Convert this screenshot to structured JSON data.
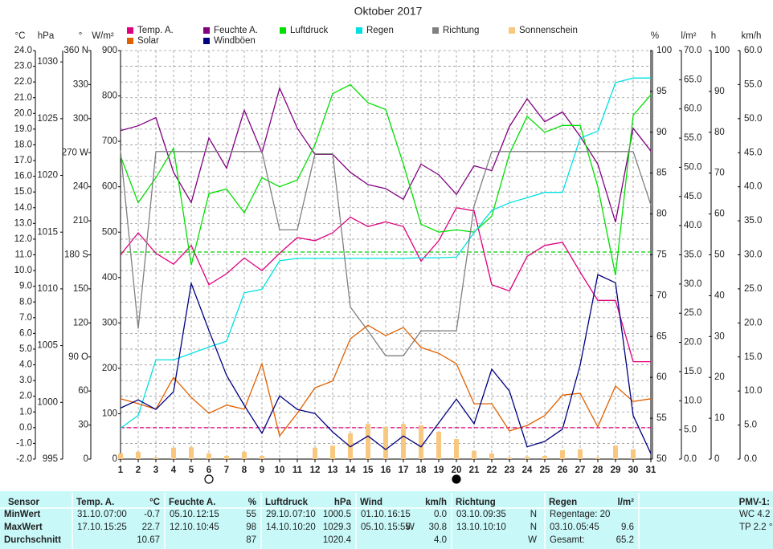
{
  "chart_data": {
    "type": "line",
    "title": "Oktober 2017",
    "x": [
      1,
      2,
      3,
      4,
      5,
      6,
      7,
      8,
      9,
      10,
      11,
      12,
      13,
      14,
      15,
      16,
      17,
      18,
      19,
      20,
      21,
      22,
      23,
      24,
      25,
      26,
      27,
      28,
      29,
      30,
      31
    ],
    "xlim": [
      1,
      31
    ],
    "grid": true,
    "axes": {
      "temp": {
        "label": "°C",
        "color": "#e0007f",
        "ylim": [
          -2,
          24
        ],
        "yticks": [
          {
            "value": -2,
            "label": "-2.0"
          },
          {
            "value": -1,
            "label": "-1.0"
          },
          {
            "value": 0,
            "label": "0.0"
          },
          {
            "value": 1,
            "label": "1.0"
          },
          {
            "value": 2,
            "label": "2.0"
          },
          {
            "value": 3,
            "label": "3.0"
          },
          {
            "value": 4,
            "label": "4.0"
          },
          {
            "value": 5,
            "label": "5.0"
          },
          {
            "value": 6,
            "label": "6.0"
          },
          {
            "value": 7,
            "label": "7.0"
          },
          {
            "value": 8,
            "label": "8.0"
          },
          {
            "value": 9,
            "label": "9.0"
          },
          {
            "value": 10,
            "label": "10.0"
          },
          {
            "value": 11,
            "label": "11.0"
          },
          {
            "value": 12,
            "label": "12.0"
          },
          {
            "value": 13,
            "label": "13.0"
          },
          {
            "value": 14,
            "label": "14.0"
          },
          {
            "value": 15,
            "label": "15.0"
          },
          {
            "value": 16,
            "label": "16.0"
          },
          {
            "value": 17,
            "label": "17.0"
          },
          {
            "value": 18,
            "label": "18.0"
          },
          {
            "value": 19,
            "label": "19.0"
          },
          {
            "value": 20,
            "label": "20.0"
          },
          {
            "value": 21,
            "label": "21.0"
          },
          {
            "value": 22,
            "label": "22.0"
          },
          {
            "value": 23,
            "label": "23.0"
          },
          {
            "value": 24,
            "label": "24.0"
          }
        ]
      },
      "hpa": {
        "label": "hPa",
        "color": "#00c000",
        "ylim": [
          995,
          1031
        ],
        "yticks": [
          995,
          1000,
          1005,
          1010,
          1015,
          1020,
          1025,
          1030
        ]
      },
      "dir": {
        "label": "°",
        "color": "#707070",
        "ylim": [
          0,
          360
        ],
        "yticks": [
          0,
          30,
          60,
          {
            "value": 90,
            "label": "90 O"
          },
          120,
          150,
          {
            "value": 180,
            "label": "180 S"
          },
          210,
          240,
          {
            "value": 270,
            "label": "270 W"
          },
          300,
          330,
          {
            "value": 360,
            "label": "360 N"
          }
        ]
      },
      "solar": {
        "label": "W/m²",
        "color": "#e06000",
        "ylim": [
          0,
          900
        ],
        "yticks": [
          0,
          100,
          200,
          300,
          400,
          500,
          600,
          700,
          800,
          900
        ]
      },
      "hum": {
        "label": "%",
        "color": "#800080",
        "ylim": [
          50,
          100
        ],
        "yticks": [
          50,
          55,
          60,
          65,
          70,
          75,
          80,
          85,
          90,
          95,
          100
        ]
      },
      "rain": {
        "label": "l/m²",
        "color": "#00d0d0",
        "ylim": [
          0,
          70
        ],
        "yticks": [
          {
            "value": 0,
            "label": "0.0"
          },
          {
            "value": 5,
            "label": "5.0"
          },
          {
            "value": 10,
            "label": "10.0"
          },
          {
            "value": 15,
            "label": "15.0"
          },
          {
            "value": 20,
            "label": "20.0"
          },
          {
            "value": 25,
            "label": "25.0"
          },
          {
            "value": 30,
            "label": "30.0"
          },
          {
            "value": 35,
            "label": "35.0"
          },
          {
            "value": 40,
            "label": "40.0"
          },
          {
            "value": 45,
            "label": "45.0"
          },
          {
            "value": 50,
            "label": "50.0"
          },
          {
            "value": 55,
            "label": "55.0"
          },
          {
            "value": 60,
            "label": "60.0"
          },
          {
            "value": 65,
            "label": "65.0"
          },
          {
            "value": 70,
            "label": "70.0"
          }
        ]
      },
      "sun": {
        "label": "h",
        "color": "#f0c080",
        "ylim": [
          0,
          100
        ],
        "yticks": [
          0,
          10,
          20,
          30,
          40,
          50,
          60,
          70,
          80,
          90,
          100
        ]
      },
      "wind": {
        "label": "km/h",
        "color": "#000080",
        "ylim": [
          0,
          60
        ],
        "yticks": [
          {
            "value": 0,
            "label": "0.0"
          },
          {
            "value": 5,
            "label": "5.0"
          },
          {
            "value": 10,
            "label": "10.0"
          },
          {
            "value": 15,
            "label": "15.0"
          },
          {
            "value": 20,
            "label": "20.0"
          },
          {
            "value": 25,
            "label": "25.0"
          },
          {
            "value": 30,
            "label": "30.0"
          },
          {
            "value": 35,
            "label": "35.0"
          },
          {
            "value": 40,
            "label": "40.0"
          },
          {
            "value": 45,
            "label": "45.0"
          },
          {
            "value": 50,
            "label": "50.0"
          },
          {
            "value": 55,
            "label": "55.0"
          },
          {
            "value": 60,
            "label": "60.0"
          }
        ]
      }
    },
    "series": [
      {
        "name": "Temp. A.",
        "color": "#e0007f",
        "axis": "temp",
        "values": [
          11.0,
          12.4,
          11.1,
          10.4,
          11.6,
          9.1,
          9.8,
          10.8,
          10.0,
          11.1,
          12.1,
          11.9,
          12.4,
          13.4,
          12.8,
          13.1,
          12.8,
          10.6,
          11.9,
          14.0,
          13.8,
          9.1,
          8.7,
          10.9,
          11.6,
          11.8,
          9.9,
          8.1,
          8.1,
          4.2,
          4.2
        ]
      },
      {
        "name": "Feuchte A.",
        "color": "#800080",
        "axis": "hum",
        "values": [
          90.2,
          90.8,
          91.8,
          85.1,
          81.4,
          89.3,
          85.6,
          92.7,
          87.5,
          95.4,
          90.5,
          87.3,
          87.3,
          85.1,
          83.6,
          83.1,
          81.8,
          86.1,
          84.8,
          82.4,
          85.9,
          85.3,
          90.7,
          94.1,
          91.3,
          92.5,
          89.5,
          86.1,
          79.0,
          90.5,
          87.7
        ]
      },
      {
        "name": "Luftdruck",
        "color": "#00e000",
        "axis": "hpa",
        "values": [
          1021.7,
          1017.6,
          1019.8,
          1022.4,
          1012.1,
          1018.4,
          1018.8,
          1016.7,
          1019.8,
          1019.0,
          1019.6,
          1022.7,
          1027.2,
          1028.0,
          1026.4,
          1025.8,
          1021.0,
          1015.7,
          1015.0,
          1015.2,
          1015.0,
          1016.4,
          1021.9,
          1025.2,
          1023.8,
          1024.4,
          1024.4,
          1019.0,
          1011.2,
          1025.3,
          1027.1
        ]
      },
      {
        "name": "Regen",
        "color": "#00e0e0",
        "axis": "rain",
        "values": [
          5.3,
          7.5,
          17.0,
          17.0,
          18.1,
          19.2,
          20.2,
          28.5,
          29.1,
          34.0,
          34.4,
          34.4,
          34.4,
          34.4,
          34.4,
          34.4,
          34.4,
          34.5,
          34.5,
          34.6,
          38.8,
          42.6,
          43.9,
          44.8,
          45.7,
          45.7,
          55.0,
          56.2,
          64.5,
          65.3,
          65.3
        ]
      },
      {
        "name": "Richtung",
        "color": "#808080",
        "axis": "dir",
        "values": [
          272,
          115,
          271,
          271,
          271,
          271,
          271,
          271,
          271,
          202,
          202,
          269,
          269,
          134,
          113,
          91,
          91,
          113,
          113,
          113,
          223,
          271,
          271,
          271,
          271,
          271,
          271,
          271,
          271,
          271,
          224
        ]
      },
      {
        "name": "Sonnenschein",
        "color": "#f8c880",
        "axis": "sun",
        "kind": "bar",
        "values": [
          1.4,
          1.8,
          0.4,
          2.8,
          2.9,
          1.4,
          0.8,
          1.8,
          0.8,
          0,
          0,
          2.8,
          3.3,
          6.3,
          8.6,
          7.9,
          8.6,
          8.3,
          6.7,
          4.9,
          2.0,
          1.4,
          0.4,
          0.6,
          0.8,
          2.2,
          2.4,
          0.4,
          3.3,
          2.4,
          0
        ]
      },
      {
        "name": "Solar",
        "color": "#e06000",
        "axis": "solar",
        "values": [
          133,
          122,
          110,
          180,
          136,
          101,
          119,
          110,
          210,
          51,
          101,
          157,
          172,
          265,
          295,
          272,
          290,
          246,
          233,
          210,
          122,
          122,
          62,
          74,
          96,
          141,
          145,
          71,
          161,
          127,
          133
        ]
      },
      {
        "name": "Windböen",
        "color": "#000080",
        "axis": "wind",
        "values": [
          7.5,
          8.7,
          7.3,
          9.9,
          25.8,
          18.9,
          12.3,
          7.9,
          3.8,
          9.3,
          7.3,
          6.7,
          4.0,
          1.8,
          3.4,
          1.4,
          3.4,
          1.8,
          5.3,
          8.8,
          5.2,
          13.2,
          10.0,
          1.8,
          2.6,
          4.4,
          13.8,
          27.1,
          25.9,
          6.4,
          0.8
        ]
      }
    ],
    "reference_lines": [
      {
        "axis": "hpa",
        "value": 1013.25,
        "color": "#00d000"
      },
      {
        "axis": "temp",
        "value": 0,
        "color": "#e0007f"
      }
    ]
  },
  "table": {
    "header": [
      {
        "name": "Sensor"
      },
      {
        "name": "Temp. A.",
        "unit": "°C"
      },
      {
        "name": "Feuchte A.",
        "unit": "%"
      },
      {
        "name": "Luftdruck",
        "unit": "hPa"
      },
      {
        "name": "Wind",
        "unit": "km/h"
      },
      {
        "name": "Richtung"
      },
      {
        "name": "Regen",
        "unit": "l/m²"
      },
      {
        "name": "PMV-1:"
      }
    ],
    "rows": [
      {
        "label": "MinWert",
        "cells": [
          {
            "date": "31.10.",
            "time": "07:00",
            "value": "-0.7"
          },
          {
            "date": "05.10.",
            "time": "12:15",
            "value": "55"
          },
          {
            "date": "29.10.",
            "time": "07:10",
            "value": "1000.5"
          },
          {
            "date": "01.10.",
            "time": "16:15",
            "value": "0.0"
          },
          {
            "date": "03.10.",
            "time": "09:35",
            "dir": "N"
          },
          {
            "text": "Regentage: 20"
          },
          {
            "text": "WC 4.2 °"
          }
        ]
      },
      {
        "label": "MaxWert",
        "cells": [
          {
            "date": "17.10.",
            "time": "15:25",
            "value": "22.7"
          },
          {
            "date": "12.10.",
            "time": "10:45",
            "value": "98"
          },
          {
            "date": "14.10.",
            "time": "10:20",
            "value": "1029.3"
          },
          {
            "date": "05.10.",
            "time": "15:55",
            "dir": "W",
            "value": "30.8"
          },
          {
            "date": "13.10.",
            "time": "10:10",
            "dir": "N"
          },
          {
            "date": "03.10.",
            "time": "05:45",
            "value": "9.6"
          },
          {
            "text": "TP 2.2 °"
          }
        ]
      },
      {
        "label": "Durchschnitt",
        "cells": [
          {
            "value": "10.67"
          },
          {
            "value": "87"
          },
          {
            "value": "1020.4"
          },
          {
            "value": "4.0"
          },
          {
            "dir": "W"
          },
          {
            "text": "Gesamt:",
            "value": "65.2"
          }
        ]
      }
    ]
  }
}
